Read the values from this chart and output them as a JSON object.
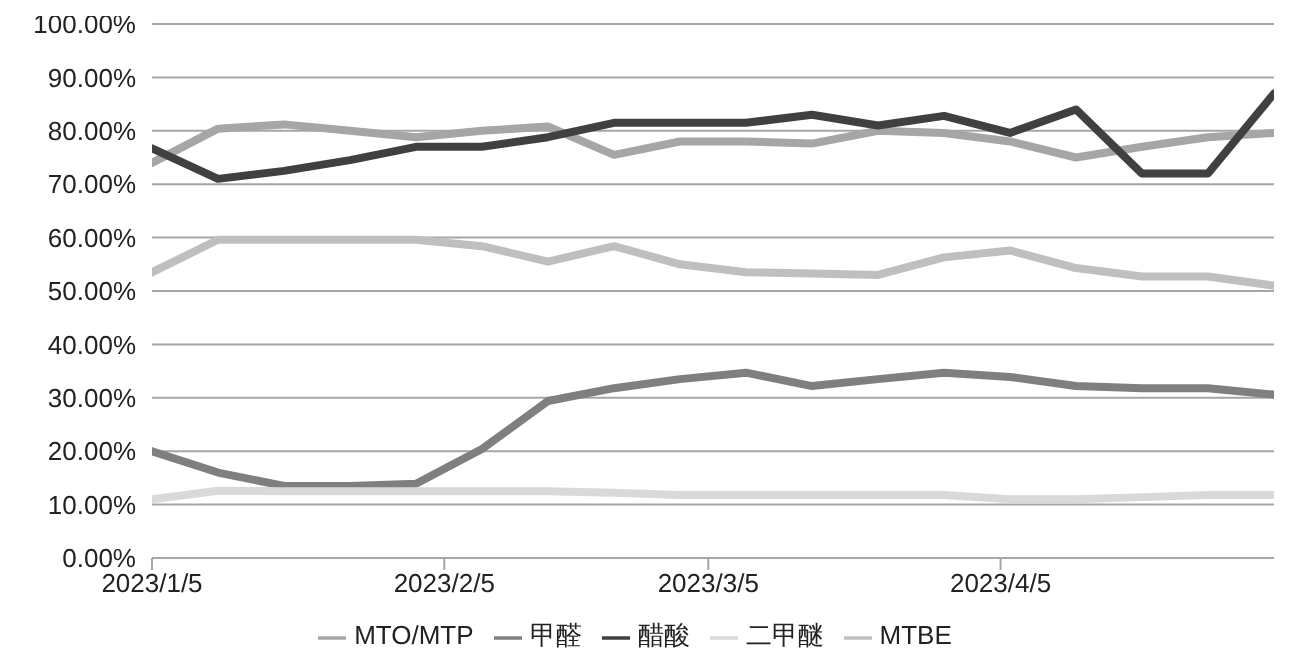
{
  "chart_data": {
    "type": "line",
    "x": [
      "2023-01-05",
      "2023-01-12",
      "2023-01-19",
      "2023-01-26",
      "2023-02-02",
      "2023-02-09",
      "2023-02-16",
      "2023-02-23",
      "2023-03-02",
      "2023-03-09",
      "2023-03-16",
      "2023-03-23",
      "2023-03-30",
      "2023-04-06",
      "2023-04-13",
      "2023-04-20",
      "2023-04-27",
      "2023-05-04"
    ],
    "series": [
      {
        "name": "MTO/MTP",
        "color": "#a6a6a6",
        "values": [
          74,
          80.4,
          81.2,
          80,
          78.8,
          80,
          80.8,
          75.5,
          78,
          78,
          77.6,
          80,
          79.6,
          78,
          75,
          77,
          78.8,
          79.6
        ]
      },
      {
        "name": "甲醛",
        "color": "#7f7f7f",
        "values": [
          20,
          16,
          13.5,
          13.5,
          13.9,
          20.4,
          29.4,
          31.8,
          33.5,
          34.7,
          32.2,
          33.5,
          34.7,
          33.9,
          32.2,
          31.8,
          31.8,
          30.6
        ]
      },
      {
        "name": "醋酸",
        "color": "#404040",
        "values": [
          76.7,
          71,
          72.5,
          74.5,
          77,
          77,
          78.8,
          81.5,
          81.5,
          81.5,
          83,
          81,
          82.8,
          79.6,
          84,
          72,
          72,
          87
        ]
      },
      {
        "name": "二甲醚",
        "color": "#d9d9d9",
        "values": [
          11,
          12.6,
          12.5,
          12.5,
          12.5,
          12.5,
          12.5,
          12.2,
          11.8,
          11.8,
          11.8,
          11.8,
          11.8,
          11,
          11,
          11.4,
          11.8,
          11.8
        ]
      },
      {
        "name": "MTBE",
        "color": "#bfbfbf",
        "values": [
          53.5,
          59.6,
          59.6,
          59.6,
          59.6,
          58.4,
          55.5,
          58.4,
          55,
          53.5,
          53.3,
          53,
          56.3,
          57.6,
          54.3,
          52.7,
          52.7,
          51
        ]
      }
    ],
    "xlim": [
      "2023-01-05",
      "2023-05-04"
    ],
    "xticks": [
      {
        "value": "2023-01-05",
        "label": "2023/1/5"
      },
      {
        "value": "2023-02-05",
        "label": "2023/2/5"
      },
      {
        "value": "2023-03-05",
        "label": "2023/3/5"
      },
      {
        "value": "2023-04-05",
        "label": "2023/4/5"
      }
    ],
    "ylim": [
      0,
      100
    ],
    "yticks": [
      {
        "value": 0,
        "label": "0.00%"
      },
      {
        "value": 10,
        "label": "10.00%"
      },
      {
        "value": 20,
        "label": "20.00%"
      },
      {
        "value": 30,
        "label": "30.00%"
      },
      {
        "value": 40,
        "label": "40.00%"
      },
      {
        "value": 50,
        "label": "50.00%"
      },
      {
        "value": 60,
        "label": "60.00%"
      },
      {
        "value": 70,
        "label": "70.00%"
      },
      {
        "value": 80,
        "label": "80.00%"
      },
      {
        "value": 90,
        "label": "90.00%"
      },
      {
        "value": 100,
        "label": "100.00%"
      }
    ],
    "grid": "y",
    "legend": "bottom",
    "marker": "none",
    "line_style": "solid"
  }
}
